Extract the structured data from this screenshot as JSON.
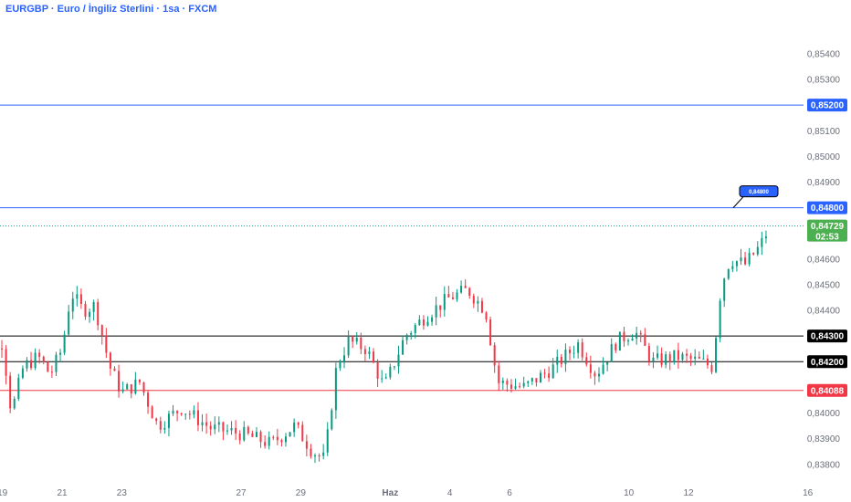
{
  "chart_data": {
    "type": "candlestick",
    "title": "EURGBP · Euro / İngiliz Sterlini · 1sa · FXCM",
    "y_ticks": [
      "0,85400",
      "0,85300",
      "0,85100",
      "0,85000",
      "0,84900",
      "0,84600",
      "0,84500",
      "0,84400",
      "0,84000",
      "0,83900",
      "0,83800"
    ],
    "y_tick_values": [
      0.854,
      0.853,
      0.851,
      0.85,
      0.849,
      0.846,
      0.845,
      0.844,
      0.84,
      0.839,
      0.838
    ],
    "ylim": [
      0.8376,
      0.8551
    ],
    "x_ticks": [
      "19",
      "21",
      "23",
      "27",
      "29",
      "Haz",
      "4",
      "6",
      "10",
      "12",
      "16"
    ],
    "current_price": {
      "value": 0.84729,
      "label": "0,84729",
      "countdown": "02:53"
    },
    "levels": [
      {
        "value": 0.852,
        "label": "0,85200",
        "color": "#2962ff",
        "style": "solid"
      },
      {
        "value": 0.848,
        "label": "0,84800",
        "color": "#2962ff",
        "style": "solid"
      },
      {
        "value": 0.843,
        "label": "0,84300",
        "color": "#000000",
        "style": "solid"
      },
      {
        "value": 0.842,
        "label": "0,84200",
        "color": "#000000",
        "style": "solid"
      },
      {
        "value": 0.84088,
        "label": "0,84088",
        "color": "#f23645",
        "style": "solid"
      }
    ],
    "annotation": {
      "text": "0,84800",
      "color": "#2962ff"
    },
    "up_color": "#089981",
    "down_color": "#f23645",
    "price_path": [
      {
        "x_tick": "18",
        "price": 0.841
      },
      {
        "x_tick": "18.6",
        "price": 0.842
      },
      {
        "x_tick": "19",
        "price": 0.8428
      },
      {
        "x_tick": "19.3",
        "price": 0.84
      },
      {
        "x_tick": "19.7",
        "price": 0.8418
      },
      {
        "x_tick": "20.2",
        "price": 0.8422
      },
      {
        "x_tick": "20.6",
        "price": 0.8415
      },
      {
        "x_tick": "21",
        "price": 0.8425
      },
      {
        "x_tick": "21.3",
        "price": 0.8447
      },
      {
        "x_tick": "21.7",
        "price": 0.844
      },
      {
        "x_tick": "22.1",
        "price": 0.8442
      },
      {
        "x_tick": "22.6",
        "price": 0.8418
      },
      {
        "x_tick": "23",
        "price": 0.8408
      },
      {
        "x_tick": "23.6",
        "price": 0.8412
      },
      {
        "x_tick": "24.2",
        "price": 0.8395
      },
      {
        "x_tick": "25",
        "price": 0.8402
      },
      {
        "x_tick": "26",
        "price": 0.8394
      },
      {
        "x_tick": "27",
        "price": 0.8392
      },
      {
        "x_tick": "28",
        "price": 0.8388
      },
      {
        "x_tick": "28.8",
        "price": 0.8395
      },
      {
        "x_tick": "29.4",
        "price": 0.8385
      },
      {
        "x_tick": "29.8",
        "price": 0.8382
      },
      {
        "x_tick": "30.2",
        "price": 0.8418
      },
      {
        "x_tick": "30.6",
        "price": 0.8428
      },
      {
        "x_tick": "31.2",
        "price": 0.8425
      },
      {
        "x_tick": "31.8",
        "price": 0.841
      },
      {
        "x_tick": "32.5",
        "price": 0.843
      },
      {
        "x_tick": "33.2",
        "price": 0.8438
      },
      {
        "x_tick": "34",
        "price": 0.8445
      },
      {
        "x_tick": "34.6",
        "price": 0.8448
      },
      {
        "x_tick": "35.2",
        "price": 0.844
      },
      {
        "x_tick": "35.6",
        "price": 0.8412
      },
      {
        "x_tick": "36.5",
        "price": 0.841
      },
      {
        "x_tick": "37.5",
        "price": 0.8418
      },
      {
        "x_tick": "38.3",
        "price": 0.8427
      },
      {
        "x_tick": "38.9",
        "price": 0.8415
      },
      {
        "x_tick": "39.6",
        "price": 0.8428
      },
      {
        "x_tick": "40.2",
        "price": 0.8432
      },
      {
        "x_tick": "40.8",
        "price": 0.842
      },
      {
        "x_tick": "41.6",
        "price": 0.8422
      },
      {
        "x_tick": "42.4",
        "price": 0.842
      },
      {
        "x_tick": "42.8",
        "price": 0.8418
      },
      {
        "x_tick": "43.1",
        "price": 0.845
      },
      {
        "x_tick": "43.4",
        "price": 0.846
      },
      {
        "x_tick": "43.9",
        "price": 0.8458
      },
      {
        "x_tick": "44.4",
        "price": 0.8465
      },
      {
        "x_tick": "44.7",
        "price": 0.8472
      }
    ]
  }
}
